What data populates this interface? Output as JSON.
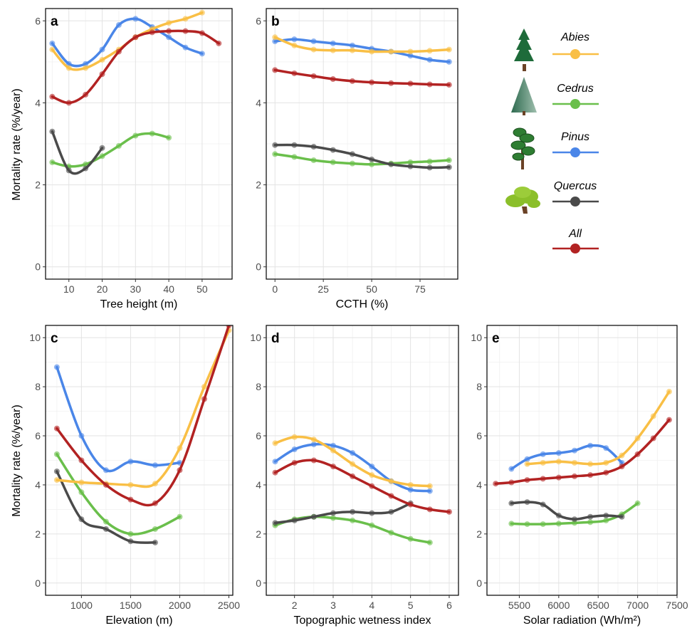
{
  "colors": {
    "Abies": "#f9bf45",
    "Cedrus": "#6abf4b",
    "Pinus": "#4a86e8",
    "Quercus": "#4a4a4a",
    "All": "#b22222"
  },
  "legend": {
    "items": [
      {
        "key": "Abies",
        "label": "Abies",
        "icon": "fir-tree-icon"
      },
      {
        "key": "Cedrus",
        "label": "Cedrus",
        "icon": "cedar-tree-icon"
      },
      {
        "key": "Pinus",
        "label": "Pinus",
        "icon": "pine-tree-icon"
      },
      {
        "key": "Quercus",
        "label": "Quercus",
        "icon": "oak-tree-icon"
      },
      {
        "key": "All",
        "label": "All",
        "icon": ""
      }
    ]
  },
  "y_axis_title": "Mortality rate (%/year)",
  "chart_data": [
    {
      "panel": "a",
      "type": "line",
      "xlabel": "Tree height (m)",
      "ylabel": "Mortality rate (%/year)",
      "xlim": [
        3,
        59
      ],
      "ylim": [
        -0.3,
        6.3
      ],
      "xticks": [
        10,
        20,
        30,
        40,
        50
      ],
      "yticks": [
        0,
        2,
        4,
        6
      ],
      "series": [
        {
          "name": "Abies",
          "x": [
            5,
            10,
            15,
            20,
            25,
            30,
            35,
            40,
            45,
            50
          ],
          "values": [
            5.3,
            4.85,
            4.85,
            5.05,
            5.3,
            5.6,
            5.8,
            5.95,
            6.05,
            6.2
          ]
        },
        {
          "name": "Cedrus",
          "x": [
            5,
            10,
            15,
            20,
            25,
            30,
            35,
            40
          ],
          "values": [
            2.55,
            2.45,
            2.5,
            2.7,
            2.95,
            3.2,
            3.25,
            3.15
          ]
        },
        {
          "name": "Pinus",
          "x": [
            5,
            10,
            15,
            20,
            25,
            30,
            35,
            40,
            45,
            50
          ],
          "values": [
            5.45,
            4.95,
            4.95,
            5.3,
            5.9,
            6.05,
            5.85,
            5.6,
            5.35,
            5.2
          ]
        },
        {
          "name": "Quercus",
          "x": [
            5,
            10,
            15,
            20
          ],
          "values": [
            3.3,
            2.35,
            2.4,
            2.9
          ]
        },
        {
          "name": "All",
          "x": [
            5,
            10,
            15,
            20,
            25,
            30,
            35,
            40,
            45,
            50,
            55
          ],
          "values": [
            4.15,
            4.0,
            4.2,
            4.7,
            5.25,
            5.6,
            5.72,
            5.75,
            5.75,
            5.7,
            5.45
          ]
        }
      ]
    },
    {
      "panel": "b",
      "type": "line",
      "xlabel": "CCTH (%)",
      "ylabel": "",
      "xlim": [
        -4.5,
        94.5
      ],
      "ylim": [
        -0.3,
        6.3
      ],
      "xticks": [
        0,
        25,
        50,
        75
      ],
      "yticks": [
        0,
        2,
        4,
        6
      ],
      "series": [
        {
          "name": "Abies",
          "x": [
            0,
            10,
            20,
            30,
            40,
            50,
            60,
            70,
            80,
            90
          ],
          "values": [
            5.6,
            5.4,
            5.3,
            5.28,
            5.28,
            5.25,
            5.25,
            5.25,
            5.27,
            5.3
          ]
        },
        {
          "name": "Cedrus",
          "x": [
            0,
            10,
            20,
            30,
            40,
            50,
            60,
            70,
            80,
            90
          ],
          "values": [
            2.75,
            2.68,
            2.6,
            2.55,
            2.52,
            2.5,
            2.52,
            2.55,
            2.57,
            2.6
          ]
        },
        {
          "name": "Pinus",
          "x": [
            0,
            10,
            20,
            30,
            40,
            50,
            60,
            70,
            80,
            90
          ],
          "values": [
            5.5,
            5.55,
            5.5,
            5.45,
            5.4,
            5.32,
            5.25,
            5.15,
            5.05,
            5.0
          ]
        },
        {
          "name": "Quercus",
          "x": [
            0,
            10,
            20,
            30,
            40,
            50,
            60,
            70,
            80,
            90
          ],
          "values": [
            2.97,
            2.97,
            2.93,
            2.85,
            2.75,
            2.62,
            2.5,
            2.45,
            2.42,
            2.43
          ]
        },
        {
          "name": "All",
          "x": [
            0,
            10,
            20,
            30,
            40,
            50,
            60,
            70,
            80,
            90
          ],
          "values": [
            4.8,
            4.72,
            4.65,
            4.58,
            4.53,
            4.5,
            4.48,
            4.47,
            4.45,
            4.44
          ]
        }
      ]
    },
    {
      "panel": "c",
      "type": "line",
      "xlabel": "Elevation (m)",
      "ylabel": "Mortality rate (%/year)",
      "xlim": [
        635,
        2540
      ],
      "ylim": [
        -0.5,
        10.5
      ],
      "xticks": [
        1000,
        1500,
        2000,
        2500
      ],
      "yticks": [
        0,
        2,
        4,
        6,
        8,
        10
      ],
      "series": [
        {
          "name": "Abies",
          "x": [
            750,
            1000,
            1250,
            1500,
            1750,
            2000,
            2250,
            2500
          ],
          "values": [
            4.2,
            4.1,
            4.05,
            4.0,
            4.05,
            5.5,
            8.0,
            10.3
          ]
        },
        {
          "name": "Cedrus",
          "x": [
            750,
            1000,
            1250,
            1500,
            1750,
            2000
          ],
          "values": [
            5.25,
            3.7,
            2.5,
            2.0,
            2.2,
            2.7
          ]
        },
        {
          "name": "Pinus",
          "x": [
            750,
            1000,
            1250,
            1500,
            1750,
            2000
          ],
          "values": [
            8.8,
            6.0,
            4.6,
            4.95,
            4.8,
            4.9
          ]
        },
        {
          "name": "Quercus",
          "x": [
            750,
            1000,
            1250,
            1500,
            1750
          ],
          "values": [
            4.55,
            2.6,
            2.2,
            1.7,
            1.65
          ]
        },
        {
          "name": "All",
          "x": [
            750,
            1000,
            1250,
            1500,
            1750,
            2000,
            2250,
            2500
          ],
          "values": [
            6.3,
            5.0,
            4.0,
            3.4,
            3.25,
            4.6,
            7.5,
            10.5
          ]
        }
      ]
    },
    {
      "panel": "d",
      "type": "line",
      "xlabel": "Topographic wetness index",
      "ylabel": "",
      "xlim": [
        1.27,
        6.24
      ],
      "ylim": [
        -0.5,
        10.5
      ],
      "xticks": [
        2,
        3,
        4,
        5,
        6
      ],
      "yticks": [
        0,
        2,
        4,
        6,
        8,
        10
      ],
      "series": [
        {
          "name": "Abies",
          "x": [
            1.5,
            2,
            2.5,
            3,
            3.5,
            4,
            4.5,
            5,
            5.5
          ],
          "values": [
            5.7,
            5.95,
            5.85,
            5.4,
            4.85,
            4.4,
            4.15,
            4.0,
            3.95
          ]
        },
        {
          "name": "Cedrus",
          "x": [
            1.5,
            2,
            2.5,
            3,
            3.5,
            4,
            4.5,
            5,
            5.5
          ],
          "values": [
            2.35,
            2.6,
            2.7,
            2.65,
            2.55,
            2.35,
            2.05,
            1.8,
            1.65
          ]
        },
        {
          "name": "Pinus",
          "x": [
            1.5,
            2,
            2.5,
            3,
            3.5,
            4,
            4.5,
            5,
            5.5
          ],
          "values": [
            4.95,
            5.45,
            5.65,
            5.6,
            5.3,
            4.75,
            4.15,
            3.8,
            3.75
          ]
        },
        {
          "name": "Quercus",
          "x": [
            1.5,
            2,
            2.5,
            3,
            3.5,
            4,
            4.5,
            5
          ],
          "values": [
            2.45,
            2.55,
            2.7,
            2.85,
            2.9,
            2.85,
            2.9,
            3.25
          ]
        },
        {
          "name": "All",
          "x": [
            1.5,
            2,
            2.5,
            3,
            3.5,
            4,
            4.5,
            5,
            5.5,
            6
          ],
          "values": [
            4.5,
            4.9,
            5.0,
            4.75,
            4.35,
            3.95,
            3.55,
            3.2,
            3.0,
            2.9
          ]
        }
      ]
    },
    {
      "panel": "e",
      "type": "line",
      "xlabel": "Solar radiation (Wh/m²)",
      "ylabel": "",
      "xlim": [
        5090,
        7500
      ],
      "ylim": [
        -0.5,
        10.5
      ],
      "xticks": [
        5500,
        6000,
        6500,
        7000,
        7500
      ],
      "yticks": [
        0,
        2,
        4,
        6,
        8,
        10
      ],
      "series": [
        {
          "name": "Abies",
          "x": [
            5600,
            5800,
            6000,
            6200,
            6400,
            6600,
            6800,
            7000,
            7200,
            7400
          ],
          "values": [
            4.85,
            4.9,
            4.95,
            4.9,
            4.85,
            4.9,
            5.2,
            5.9,
            6.8,
            7.8
          ]
        },
        {
          "name": "Cedrus",
          "x": [
            5400,
            5600,
            5800,
            6000,
            6200,
            6400,
            6600,
            6800,
            7000
          ],
          "values": [
            2.42,
            2.4,
            2.4,
            2.42,
            2.45,
            2.48,
            2.55,
            2.8,
            3.25
          ]
        },
        {
          "name": "Pinus",
          "x": [
            5400,
            5600,
            5800,
            6000,
            6200,
            6400,
            6600,
            6800
          ],
          "values": [
            4.65,
            5.05,
            5.25,
            5.3,
            5.4,
            5.6,
            5.5,
            4.9
          ]
        },
        {
          "name": "Quercus",
          "x": [
            5400,
            5600,
            5800,
            6000,
            6200,
            6400,
            6600,
            6800
          ],
          "values": [
            3.25,
            3.3,
            3.2,
            2.75,
            2.6,
            2.7,
            2.75,
            2.7
          ]
        },
        {
          "name": "All",
          "x": [
            5200,
            5400,
            5600,
            5800,
            6000,
            6200,
            6400,
            6600,
            6800,
            7000,
            7200,
            7400
          ],
          "values": [
            4.05,
            4.1,
            4.2,
            4.25,
            4.3,
            4.35,
            4.4,
            4.5,
            4.75,
            5.25,
            5.9,
            6.65
          ]
        }
      ]
    }
  ]
}
